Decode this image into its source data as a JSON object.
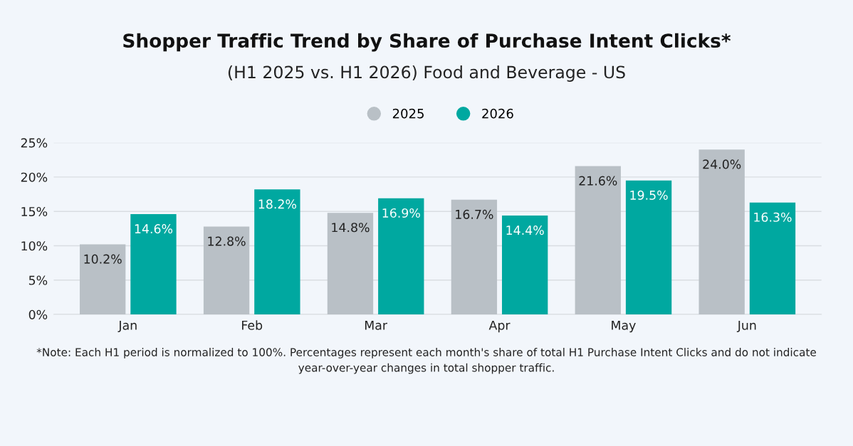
{
  "chart_data": {
    "type": "bar",
    "title": "Shopper Traffic Trend by Share of Purchase Intent Clicks*",
    "subtitle": "(H1 2025 vs. H1 2026) Food and Beverage - US",
    "categories": [
      "Jan",
      "Feb",
      "Mar",
      "Apr",
      "May",
      "Jun"
    ],
    "series": [
      {
        "name": "2025",
        "color": "#b9c0c6",
        "values": [
          10.2,
          12.8,
          14.8,
          16.7,
          21.6,
          24.0
        ],
        "value_labels": [
          "10.2%",
          "12.8%",
          "14.8%",
          "16.7%",
          "21.6%",
          "24.0%"
        ]
      },
      {
        "name": "2026",
        "color": "#00a8a0",
        "values": [
          14.6,
          18.2,
          16.9,
          14.4,
          19.5,
          16.3
        ],
        "value_labels": [
          "14.6%",
          "18.2%",
          "16.9%",
          "14.4%",
          "19.5%",
          "16.3%"
        ]
      }
    ],
    "ylim": [
      0,
      25
    ],
    "yticks": [
      {
        "value": 0,
        "label": "0%"
      },
      {
        "value": 5,
        "label": "5%"
      },
      {
        "value": 10,
        "label": "10%"
      },
      {
        "value": 15,
        "label": "15%"
      },
      {
        "value": 20,
        "label": "20%"
      },
      {
        "value": 25,
        "label": "25%"
      }
    ],
    "grid": "y",
    "legend": "top",
    "annotations": [
      "*Note: Each H1 period is normalized to 100%. Percentages represent each month's share of total H1 Purchase Intent Clicks and do not indicate year-over-year changes in total shopper traffic."
    ]
  }
}
